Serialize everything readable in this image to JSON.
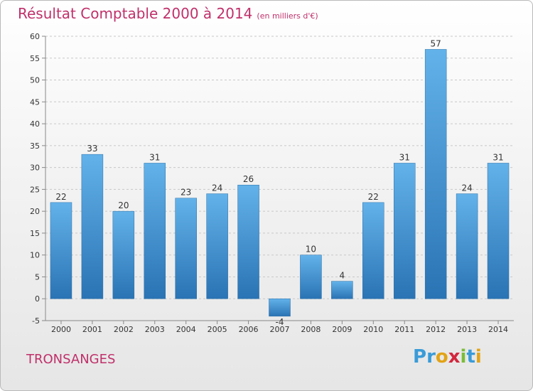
{
  "page": {
    "title": "Résultat Comptable 2000 à 2014",
    "unit": "(en milliers d'€)",
    "place": "TRONSANGES",
    "logo": [
      "P",
      "r",
      "o",
      "x",
      "i",
      "t",
      "i"
    ],
    "logo_colors": [
      "#3a9bd8",
      "#3a9bd8",
      "#e2a316",
      "#d3273e",
      "#7cbc3a",
      "#3a9bd8",
      "#e2a316"
    ]
  },
  "chart_data": {
    "type": "bar",
    "title": "Résultat Comptable 2000 à 2014",
    "xlabel": "",
    "ylabel": "",
    "categories": [
      "2000",
      "2001",
      "2002",
      "2003",
      "2004",
      "2005",
      "2006",
      "2007",
      "2008",
      "2009",
      "2010",
      "2011",
      "2012",
      "2013",
      "2014"
    ],
    "values": [
      22,
      33,
      20,
      31,
      23,
      24,
      26,
      -4,
      10,
      4,
      22,
      31,
      57,
      24,
      31
    ],
    "data_labels": [
      "22",
      "33",
      "20",
      "31",
      "23",
      "24",
      "26",
      "-4",
      "10",
      "4",
      "22",
      "31",
      "57",
      "24",
      "31"
    ],
    "ylim": [
      -5,
      60
    ],
    "yticks": [
      -5,
      0,
      5,
      10,
      15,
      20,
      25,
      30,
      35,
      40,
      45,
      50,
      55,
      60
    ],
    "grid": "horizontal-dashed",
    "bar_color": "#3a8fd0",
    "bar_color_light": "#63b2ea",
    "bar_color_dark": "#2a73b4",
    "legend": "none"
  }
}
